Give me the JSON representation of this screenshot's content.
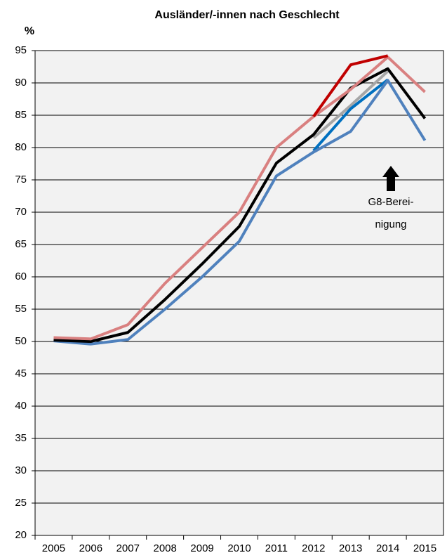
{
  "chart_data": {
    "type": "line",
    "title": "Ausländer/-innen nach Geschlecht",
    "y_label": "%",
    "categories": [
      "2005",
      "2006",
      "2007",
      "2008",
      "2009",
      "2010",
      "2011",
      "2012",
      "2013",
      "2014",
      "2015"
    ],
    "series": [
      {
        "color": "#a6a6a6",
        "values": [
          null,
          null,
          null,
          null,
          null,
          null,
          null,
          81.5,
          86.5,
          91.8,
          null
        ]
      },
      {
        "color": "#0070c0",
        "values": [
          null,
          null,
          null,
          null,
          null,
          null,
          null,
          79.5,
          86,
          90.5,
          null
        ]
      },
      {
        "color": "#4f81bd",
        "values": [
          50.1,
          49.6,
          50.3,
          55,
          60,
          65.5,
          75.6,
          79.3,
          82.5,
          90.4,
          81.1
        ]
      },
      {
        "color": "#000000",
        "values": [
          50.2,
          50.0,
          51.4,
          56.5,
          62,
          67.8,
          77.6,
          82,
          89.2,
          92.2,
          84.5
        ]
      },
      {
        "color": "#d98080",
        "values": [
          50.6,
          50.4,
          52.6,
          59,
          64.5,
          70,
          80,
          84.8,
          89,
          94,
          88.6
        ]
      },
      {
        "color": "#c00000",
        "values": [
          null,
          null,
          null,
          null,
          null,
          null,
          null,
          84.8,
          92.8,
          94.2,
          null
        ]
      }
    ],
    "ylim": [
      20,
      95
    ],
    "yticks": [
      20,
      25,
      30,
      35,
      40,
      45,
      50,
      55,
      60,
      65,
      70,
      75,
      80,
      85,
      90,
      95
    ],
    "grid": true,
    "annotation": [
      "G8-Berei-",
      "nigung"
    ]
  }
}
